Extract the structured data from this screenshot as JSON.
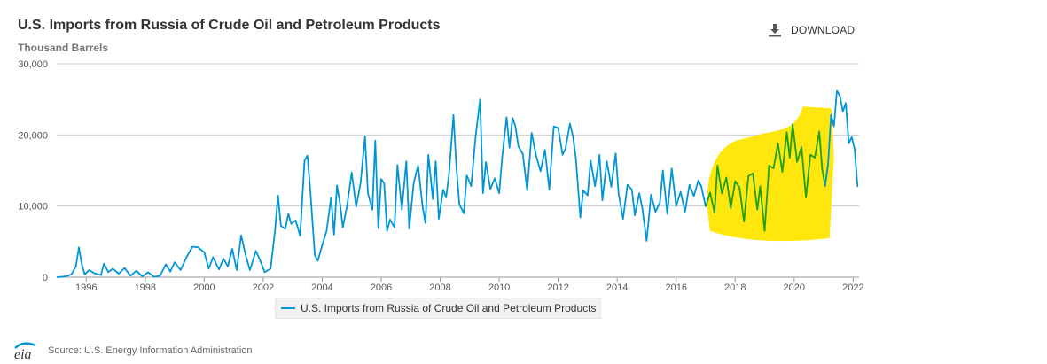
{
  "header": {
    "title": "U.S. Imports from Russia of Crude Oil and Petroleum Products",
    "subtitle": "Thousand Barrels",
    "download_label": "DOWNLOAD"
  },
  "footer": {
    "logo_text": "eia",
    "source": "Source: U.S. Energy Information Administration"
  },
  "colors": {
    "series": "#0096d6",
    "highlight_fill": "#ffe600",
    "highlight_line": "#1aa01a",
    "grid": "#cccccc"
  },
  "chart_data": {
    "type": "line",
    "title": "U.S. Imports from Russia of Crude Oil and Petroleum Products",
    "ylabel": "Thousand Barrels",
    "xlim": [
      1995,
      2022.2
    ],
    "ylim": [
      0,
      30000
    ],
    "y_ticks": [
      0,
      10000,
      20000,
      30000
    ],
    "y_tick_labels": [
      "0",
      "10,000",
      "20,000",
      "30,000"
    ],
    "x_ticks": [
      1996,
      1998,
      2000,
      2002,
      2004,
      2006,
      2008,
      2010,
      2012,
      2014,
      2016,
      2018,
      2020,
      2022
    ],
    "x_tick_labels": [
      "1996",
      "1998",
      "2000",
      "2002",
      "2004",
      "2006",
      "2008",
      "2010",
      "2012",
      "2014",
      "2016",
      "2018",
      "2020",
      "2022"
    ],
    "grid": true,
    "legend": "bottom",
    "annotation": "yellow hand-drawn scribble highlight over 2017–2021 with the line recolored green",
    "highlight_range": [
      2017,
      2021.2
    ],
    "series": [
      {
        "name": "U.S. Imports from Russia of Crude Oil and Petroleum Products",
        "points": [
          [
            1995.0,
            0
          ],
          [
            1995.3,
            100
          ],
          [
            1995.5,
            400
          ],
          [
            1995.65,
            1500
          ],
          [
            1995.75,
            4200
          ],
          [
            1995.85,
            1800
          ],
          [
            1995.95,
            400
          ],
          [
            1996.1,
            1000
          ],
          [
            1996.3,
            500
          ],
          [
            1996.5,
            300
          ],
          [
            1996.6,
            1900
          ],
          [
            1996.75,
            700
          ],
          [
            1996.9,
            1200
          ],
          [
            1997.1,
            500
          ],
          [
            1997.3,
            1300
          ],
          [
            1997.5,
            200
          ],
          [
            1997.7,
            900
          ],
          [
            1997.9,
            100
          ],
          [
            1998.1,
            700
          ],
          [
            1998.3,
            50
          ],
          [
            1998.5,
            200
          ],
          [
            1998.7,
            1800
          ],
          [
            1998.85,
            800
          ],
          [
            1999.0,
            2100
          ],
          [
            1999.2,
            1000
          ],
          [
            1999.4,
            2800
          ],
          [
            1999.6,
            4300
          ],
          [
            1999.8,
            4200
          ],
          [
            2000.0,
            3500
          ],
          [
            2000.15,
            1200
          ],
          [
            2000.3,
            2800
          ],
          [
            2000.5,
            1100
          ],
          [
            2000.65,
            2600
          ],
          [
            2000.8,
            1500
          ],
          [
            2000.95,
            4000
          ],
          [
            2001.1,
            1000
          ],
          [
            2001.25,
            5900
          ],
          [
            2001.4,
            3200
          ],
          [
            2001.55,
            1000
          ],
          [
            2001.75,
            3700
          ],
          [
            2001.9,
            2300
          ],
          [
            2002.05,
            700
          ],
          [
            2002.25,
            1200
          ],
          [
            2002.4,
            6500
          ],
          [
            2002.5,
            11500
          ],
          [
            2002.6,
            7200
          ],
          [
            2002.75,
            6800
          ],
          [
            2002.85,
            8900
          ],
          [
            2002.95,
            7500
          ],
          [
            2003.1,
            8000
          ],
          [
            2003.25,
            5800
          ],
          [
            2003.4,
            16400
          ],
          [
            2003.5,
            17100
          ],
          [
            2003.6,
            12000
          ],
          [
            2003.75,
            3100
          ],
          [
            2003.85,
            2300
          ],
          [
            2004.0,
            4500
          ],
          [
            2004.15,
            6500
          ],
          [
            2004.3,
            11200
          ],
          [
            2004.4,
            6000
          ],
          [
            2004.5,
            12900
          ],
          [
            2004.6,
            10500
          ],
          [
            2004.7,
            7000
          ],
          [
            2004.85,
            10200
          ],
          [
            2005.0,
            14700
          ],
          [
            2005.15,
            9900
          ],
          [
            2005.3,
            13200
          ],
          [
            2005.45,
            19800
          ],
          [
            2005.55,
            11800
          ],
          [
            2005.7,
            9500
          ],
          [
            2005.8,
            19200
          ],
          [
            2005.9,
            6900
          ],
          [
            2006.0,
            13800
          ],
          [
            2006.1,
            13200
          ],
          [
            2006.2,
            6500
          ],
          [
            2006.3,
            8100
          ],
          [
            2006.45,
            7000
          ],
          [
            2006.55,
            15800
          ],
          [
            2006.7,
            9500
          ],
          [
            2006.85,
            16300
          ],
          [
            2006.95,
            6800
          ],
          [
            2007.1,
            13200
          ],
          [
            2007.25,
            15700
          ],
          [
            2007.4,
            10000
          ],
          [
            2007.5,
            7600
          ],
          [
            2007.6,
            17200
          ],
          [
            2007.75,
            11000
          ],
          [
            2007.85,
            16300
          ],
          [
            2007.95,
            8200
          ],
          [
            2008.1,
            12300
          ],
          [
            2008.2,
            11200
          ],
          [
            2008.3,
            14500
          ],
          [
            2008.45,
            22800
          ],
          [
            2008.55,
            15500
          ],
          [
            2008.65,
            10200
          ],
          [
            2008.8,
            9000
          ],
          [
            2008.9,
            14300
          ],
          [
            2009.05,
            12800
          ],
          [
            2009.2,
            19800
          ],
          [
            2009.35,
            25000
          ],
          [
            2009.45,
            11800
          ],
          [
            2009.55,
            16200
          ],
          [
            2009.7,
            12400
          ],
          [
            2009.85,
            13900
          ],
          [
            2010.0,
            11800
          ],
          [
            2010.1,
            16800
          ],
          [
            2010.25,
            22500
          ],
          [
            2010.35,
            18200
          ],
          [
            2010.45,
            22400
          ],
          [
            2010.55,
            21200
          ],
          [
            2010.65,
            18400
          ],
          [
            2010.8,
            17300
          ],
          [
            2010.95,
            12200
          ],
          [
            2011.1,
            20300
          ],
          [
            2011.25,
            17100
          ],
          [
            2011.4,
            14900
          ],
          [
            2011.55,
            17900
          ],
          [
            2011.7,
            12300
          ],
          [
            2011.85,
            21200
          ],
          [
            2012.0,
            21000
          ],
          [
            2012.15,
            17200
          ],
          [
            2012.25,
            18100
          ],
          [
            2012.4,
            21600
          ],
          [
            2012.5,
            19800
          ],
          [
            2012.6,
            16700
          ],
          [
            2012.75,
            8400
          ],
          [
            2012.85,
            12200
          ],
          [
            2013.0,
            11500
          ],
          [
            2013.1,
            16400
          ],
          [
            2013.25,
            12800
          ],
          [
            2013.4,
            17200
          ],
          [
            2013.5,
            10800
          ],
          [
            2013.65,
            16300
          ],
          [
            2013.8,
            12700
          ],
          [
            2013.95,
            17400
          ],
          [
            2014.05,
            11700
          ],
          [
            2014.2,
            8200
          ],
          [
            2014.35,
            13000
          ],
          [
            2014.5,
            12300
          ],
          [
            2014.6,
            8700
          ],
          [
            2014.75,
            11800
          ],
          [
            2014.85,
            9700
          ],
          [
            2015.0,
            5100
          ],
          [
            2015.15,
            11600
          ],
          [
            2015.3,
            9200
          ],
          [
            2015.45,
            10500
          ],
          [
            2015.55,
            15000
          ],
          [
            2015.7,
            8900
          ],
          [
            2015.85,
            15300
          ],
          [
            2016.0,
            10000
          ],
          [
            2016.15,
            12000
          ],
          [
            2016.3,
            9200
          ],
          [
            2016.45,
            13000
          ],
          [
            2016.6,
            11400
          ],
          [
            2016.75,
            13600
          ],
          [
            2016.85,
            12800
          ],
          [
            2017.0,
            9900
          ],
          [
            2017.15,
            11900
          ],
          [
            2017.3,
            9100
          ],
          [
            2017.4,
            15700
          ],
          [
            2017.55,
            11800
          ],
          [
            2017.7,
            14000
          ],
          [
            2017.85,
            9700
          ],
          [
            2018.0,
            13500
          ],
          [
            2018.15,
            12600
          ],
          [
            2018.3,
            7800
          ],
          [
            2018.45,
            14200
          ],
          [
            2018.6,
            14600
          ],
          [
            2018.75,
            9500
          ],
          [
            2018.85,
            12800
          ],
          [
            2019.0,
            6500
          ],
          [
            2019.15,
            15700
          ],
          [
            2019.3,
            15300
          ],
          [
            2019.45,
            18800
          ],
          [
            2019.6,
            14800
          ],
          [
            2019.75,
            20400
          ],
          [
            2019.85,
            16800
          ],
          [
            2019.95,
            21500
          ],
          [
            2020.1,
            16200
          ],
          [
            2020.25,
            18300
          ],
          [
            2020.4,
            11200
          ],
          [
            2020.55,
            17200
          ],
          [
            2020.7,
            16800
          ],
          [
            2020.85,
            20500
          ],
          [
            2020.95,
            15200
          ],
          [
            2021.05,
            12800
          ],
          [
            2021.15,
            16000
          ],
          [
            2021.25,
            22800
          ],
          [
            2021.35,
            21200
          ],
          [
            2021.45,
            26200
          ],
          [
            2021.55,
            25500
          ],
          [
            2021.65,
            23300
          ],
          [
            2021.75,
            24500
          ],
          [
            2021.85,
            18800
          ],
          [
            2021.95,
            19700
          ],
          [
            2022.05,
            18000
          ],
          [
            2022.15,
            12700
          ]
        ]
      }
    ]
  }
}
